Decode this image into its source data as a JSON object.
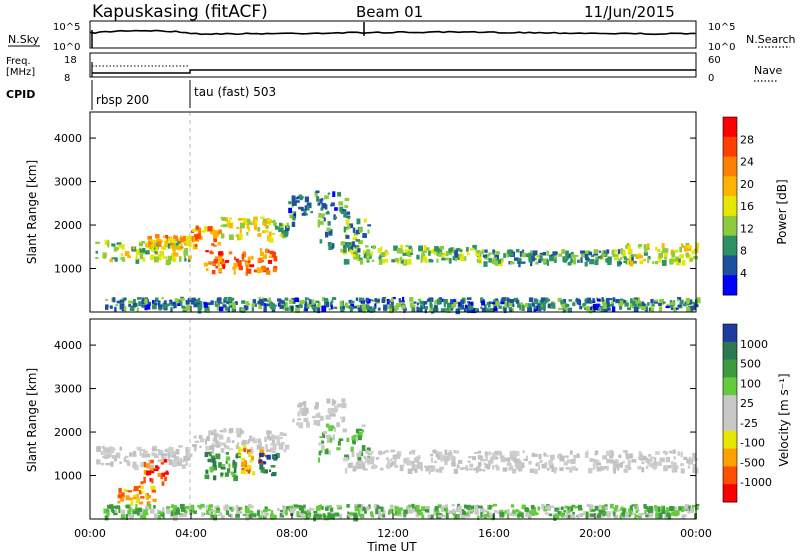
{
  "header": {
    "station": "Kapuskasing (fitACF)",
    "beam": "Beam 01",
    "date": "11/Jun/2015"
  },
  "top_panels": {
    "nsky_label": "N.Sky",
    "nsearch_label": "N.Search",
    "noise_ticks_left": [
      "10^5",
      "10^0"
    ],
    "noise_ticks_right": [
      "10^5",
      "10^0"
    ],
    "freq_label_1": "Freq.",
    "freq_label_2": "[MHz]",
    "freq_ticks": [
      "18",
      "8"
    ],
    "nave_label": "Nave",
    "nave_ticks": [
      "60",
      "0"
    ],
    "cpid_label": "CPID",
    "cpid_segments": [
      {
        "label": "rbsp 200",
        "start_hour": 0
      },
      {
        "label": "tau (fast) 503",
        "start_hour": 4
      }
    ]
  },
  "chart_data": [
    {
      "type": "heatmap",
      "panel": "power",
      "ylabel": "Slant Range [km]",
      "ylim": [
        0,
        4600
      ],
      "y_ticks": [
        "1000",
        "2000",
        "3000",
        "4000"
      ],
      "xlim_hours": [
        0,
        24
      ],
      "colorbar_label": "Power [dB]",
      "colorbar_ticks": [
        "28",
        "24",
        "20",
        "16",
        "12",
        "8",
        "4"
      ],
      "colorbar_colors": [
        "#ff0000",
        "#ff4000",
        "#ff8000",
        "#ffb400",
        "#e6e600",
        "#8ccc3c",
        "#2d9164",
        "#1e50a0",
        "#0000ff"
      ],
      "echo_bands": [
        {
          "t0": 0.2,
          "t1": 3.9,
          "r0": 1200,
          "r1": 1700,
          "level": 12
        },
        {
          "t0": 2.2,
          "t1": 4.2,
          "r0": 1500,
          "r1": 1800,
          "level": 18
        },
        {
          "t0": 4.0,
          "t1": 5.2,
          "r0": 1550,
          "r1": 2000,
          "level": 20
        },
        {
          "t0": 4.5,
          "t1": 7.3,
          "r0": 950,
          "r1": 1500,
          "level": 22
        },
        {
          "t0": 5.0,
          "t1": 7.3,
          "r0": 1700,
          "r1": 2200,
          "level": 14
        },
        {
          "t0": 7.3,
          "t1": 8.0,
          "r0": 1800,
          "r1": 2100,
          "level": 8
        },
        {
          "t0": 7.8,
          "t1": 10.2,
          "r0": 2200,
          "r1": 2800,
          "level": 6
        },
        {
          "t0": 9.0,
          "t1": 11.0,
          "r0": 1400,
          "r1": 2200,
          "level": 8
        },
        {
          "t0": 10.0,
          "t1": 15.5,
          "r0": 1200,
          "r1": 1550,
          "level": 10
        },
        {
          "t0": 15.5,
          "t1": 21.5,
          "r0": 1150,
          "r1": 1450,
          "level": 8
        },
        {
          "t0": 21.0,
          "t1": 24.0,
          "r0": 1150,
          "r1": 1600,
          "level": 13
        },
        {
          "t0": 0.5,
          "t1": 24.0,
          "r0": 80,
          "r1": 350,
          "level": 6
        }
      ]
    },
    {
      "type": "heatmap",
      "panel": "velocity",
      "ylabel": "Slant Range [km]",
      "ylim": [
        0,
        4600
      ],
      "y_ticks": [
        "1000",
        "2000",
        "3000",
        "4000"
      ],
      "xlim_hours": [
        0,
        24
      ],
      "x_ticks": [
        "00:00",
        "04:00",
        "08:00",
        "12:00",
        "16:00",
        "20:00",
        "00:00"
      ],
      "xlabel": "Time UT",
      "colorbar_label": "Velocity [m s⁻¹]",
      "colorbar_ticks": [
        "1000",
        "500",
        "100",
        "25",
        "-25",
        "-100",
        "-500",
        "-1000"
      ],
      "colorbar_colors": [
        "#1e3ca0",
        "#2d7850",
        "#3c9b3c",
        "#64cc3c",
        "#c8c8c8",
        "#c8c8c8",
        "#e6e600",
        "#ffa000",
        "#ff5000",
        "#ff0000"
      ],
      "echo_bands": [
        {
          "t0": 0.2,
          "t1": 3.9,
          "r0": 1250,
          "r1": 1700,
          "vel": "grey"
        },
        {
          "t0": 2.0,
          "t1": 3.0,
          "r0": 800,
          "r1": 1400,
          "vel": "neg_strong"
        },
        {
          "t0": 1.0,
          "t1": 2.5,
          "r0": 400,
          "r1": 800,
          "vel": "neg"
        },
        {
          "t0": 4.0,
          "t1": 7.8,
          "r0": 1600,
          "r1": 2100,
          "vel": "grey"
        },
        {
          "t0": 4.5,
          "t1": 5.8,
          "r0": 950,
          "r1": 1550,
          "vel": "pos_mid"
        },
        {
          "t0": 5.8,
          "t1": 6.8,
          "r0": 1100,
          "r1": 1700,
          "vel": "neg"
        },
        {
          "t0": 6.6,
          "t1": 7.4,
          "r0": 1050,
          "r1": 1550,
          "vel": "pos_strong"
        },
        {
          "t0": 8.0,
          "t1": 10.0,
          "r0": 2200,
          "r1": 2800,
          "vel": "grey"
        },
        {
          "t0": 9.0,
          "t1": 11.0,
          "r0": 1400,
          "r1": 2200,
          "vel": "pos_weak"
        },
        {
          "t0": 10.0,
          "t1": 24.0,
          "r0": 1150,
          "r1": 1600,
          "vel": "grey"
        },
        {
          "t0": 0.5,
          "t1": 24.0,
          "r0": 80,
          "r1": 350,
          "vel": "pos_weak"
        }
      ]
    }
  ]
}
